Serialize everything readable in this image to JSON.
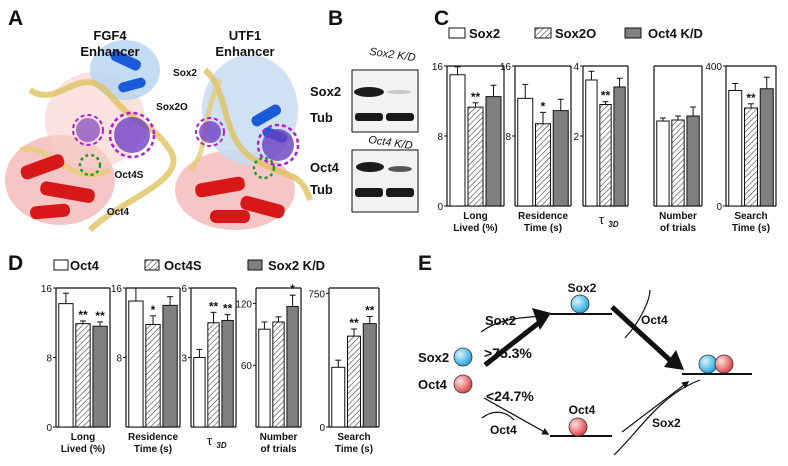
{
  "panels": {
    "a": "A",
    "b": "B",
    "c": "C",
    "d": "D",
    "e": "E"
  },
  "panelA": {
    "title_left": [
      "FGF4",
      "Enhancer"
    ],
    "title_right": [
      "UTF1",
      "Enhancer"
    ],
    "label_sox2": "Sox2",
    "label_sox2o": "Sox2O",
    "label_oct4s": "Oct4S",
    "label_oct4": "Oct4",
    "colors": {
      "sox2": "#1a3fcf",
      "sox2o": "#a020c0",
      "oct4s": "#1e9a2a",
      "oct4": "#e01010"
    }
  },
  "panelB": {
    "blot1_title": "Sox2 K/D",
    "blot1_rows": [
      "Sox2",
      "Tub"
    ],
    "blot2_title": "Oct4 K/D",
    "blot2_rows": [
      "Oct4",
      "Tub"
    ]
  },
  "panelC": {
    "legend": [
      "Sox2",
      "Sox2O",
      "Oct4 K/D"
    ],
    "chart_data": [
      {
        "type": "bar",
        "categories": [
          "Sox2",
          "Sox2O",
          "Oct4 K/D"
        ],
        "values": [
          15.0,
          11.3,
          12.5
        ],
        "errors": [
          0.9,
          0.5,
          1.3
        ],
        "ylim": [
          0,
          16
        ],
        "yticks": [
          "16",
          "8",
          "0"
        ],
        "xlabel": [
          "Long",
          "Lived (%)"
        ],
        "stars": [
          "",
          "**",
          ""
        ]
      },
      {
        "type": "bar",
        "categories": [
          "Sox2",
          "Sox2O",
          "Oct4 K/D"
        ],
        "values": [
          12.3,
          9.4,
          10.9
        ],
        "errors": [
          1.6,
          1.3,
          1.3
        ],
        "ylim": [
          0,
          16
        ],
        "yticks": [
          "16",
          "8"
        ],
        "xlabel": [
          "Residence",
          "Time (s)"
        ],
        "stars": [
          "",
          "*",
          ""
        ]
      },
      {
        "type": "bar",
        "categories": [
          "Sox2",
          "Sox2O",
          "Oct4 K/D"
        ],
        "values": [
          3.6,
          2.9,
          3.4
        ],
        "errors": [
          0.25,
          0.08,
          0.25
        ],
        "ylim": [
          0,
          4
        ],
        "yticks": [
          "4",
          "2"
        ],
        "xlabel": [
          "τ",
          "3D"
        ],
        "stars": [
          "",
          "**",
          ""
        ]
      },
      {
        "type": "bar",
        "categories": [
          "Sox2",
          "Sox2O",
          "Oct4 K/D"
        ],
        "values": [
          85,
          86,
          90
        ],
        "errors": [
          3,
          4,
          9
        ],
        "ylim": [
          0,
          140
        ],
        "yticks": [],
        "xlabel": [
          "Number",
          "of trials"
        ],
        "stars": [
          "",
          "",
          ""
        ]
      },
      {
        "type": "bar",
        "categories": [
          "Sox2",
          "Sox2O",
          "Oct4 K/D"
        ],
        "values": [
          330,
          280,
          335
        ],
        "errors": [
          20,
          12,
          33
        ],
        "ylim": [
          0,
          400
        ],
        "yticks": [
          "400",
          "0"
        ],
        "xlabel": [
          "Search",
          "Time (s)"
        ],
        "stars": [
          "",
          "**",
          ""
        ]
      }
    ]
  },
  "panelD": {
    "legend": [
      "Oct4",
      "Oct4S",
      "Sox2 K/D"
    ],
    "chart_data": [
      {
        "type": "bar",
        "categories": [
          "Oct4",
          "Oct4S",
          "Sox2 K/D"
        ],
        "values": [
          14.2,
          11.9,
          11.6
        ],
        "errors": [
          1.2,
          0.3,
          0.5
        ],
        "ylim": [
          0,
          16
        ],
        "yticks": [
          "16",
          "8",
          "0"
        ],
        "xlabel": [
          "Long",
          "Lived (%)"
        ],
        "stars": [
          "",
          "**",
          "**"
        ]
      },
      {
        "type": "bar",
        "categories": [
          "Oct4",
          "Oct4S",
          "Sox2 K/D"
        ],
        "values": [
          14.5,
          11.8,
          14.0
        ],
        "errors": [
          1.5,
          1.0,
          1.0
        ],
        "ylim": [
          0,
          16
        ],
        "yticks": [
          "16",
          "8"
        ],
        "xlabel": [
          "Residence",
          "Time (s)"
        ],
        "stars": [
          "",
          "*",
          ""
        ]
      },
      {
        "type": "bar",
        "categories": [
          "Oct4",
          "Oct4S",
          "Sox2 K/D"
        ],
        "values": [
          3.0,
          4.5,
          4.6
        ],
        "errors": [
          0.35,
          0.45,
          0.25
        ],
        "ylim": [
          0,
          6
        ],
        "yticks": [
          "6",
          "3"
        ],
        "xlabel": [
          "τ",
          "3D"
        ],
        "stars": [
          "",
          "**",
          "**"
        ]
      },
      {
        "type": "bar",
        "categories": [
          "Oct4",
          "Oct4S",
          "Sox2 K/D"
        ],
        "values": [
          95,
          102,
          117
        ],
        "errors": [
          7,
          5,
          11
        ],
        "ylim": [
          0,
          135
        ],
        "yticks": [
          "120",
          "60"
        ],
        "xlabel": [
          "Number",
          "of trials"
        ],
        "stars": [
          "",
          "",
          "*"
        ]
      },
      {
        "type": "bar",
        "categories": [
          "Oct4",
          "Oct4S",
          "Sox2 K/D"
        ],
        "values": [
          335,
          510,
          580
        ],
        "errors": [
          40,
          40,
          40
        ],
        "ylim": [
          0,
          780
        ],
        "yticks": [
          "750",
          "0"
        ],
        "xlabel": [
          "Search",
          "Time (s)"
        ],
        "stars": [
          "",
          "**",
          "**"
        ]
      }
    ]
  },
  "panelE": {
    "sox2_label": "Sox2",
    "oct4_label": "Oct4",
    "upper_pct": ">75.3%",
    "lower_pct": "<24.7%",
    "upper_left_arc": "Sox2",
    "upper_right_arc": "Oct4",
    "lower_left_arc": "Oct4",
    "lower_right_arc": "Sox2",
    "top_state": "Sox2",
    "bottom_state": "Oct4",
    "colors": {
      "sox2": "#5ec8f0",
      "oct4": "#f07878"
    }
  }
}
